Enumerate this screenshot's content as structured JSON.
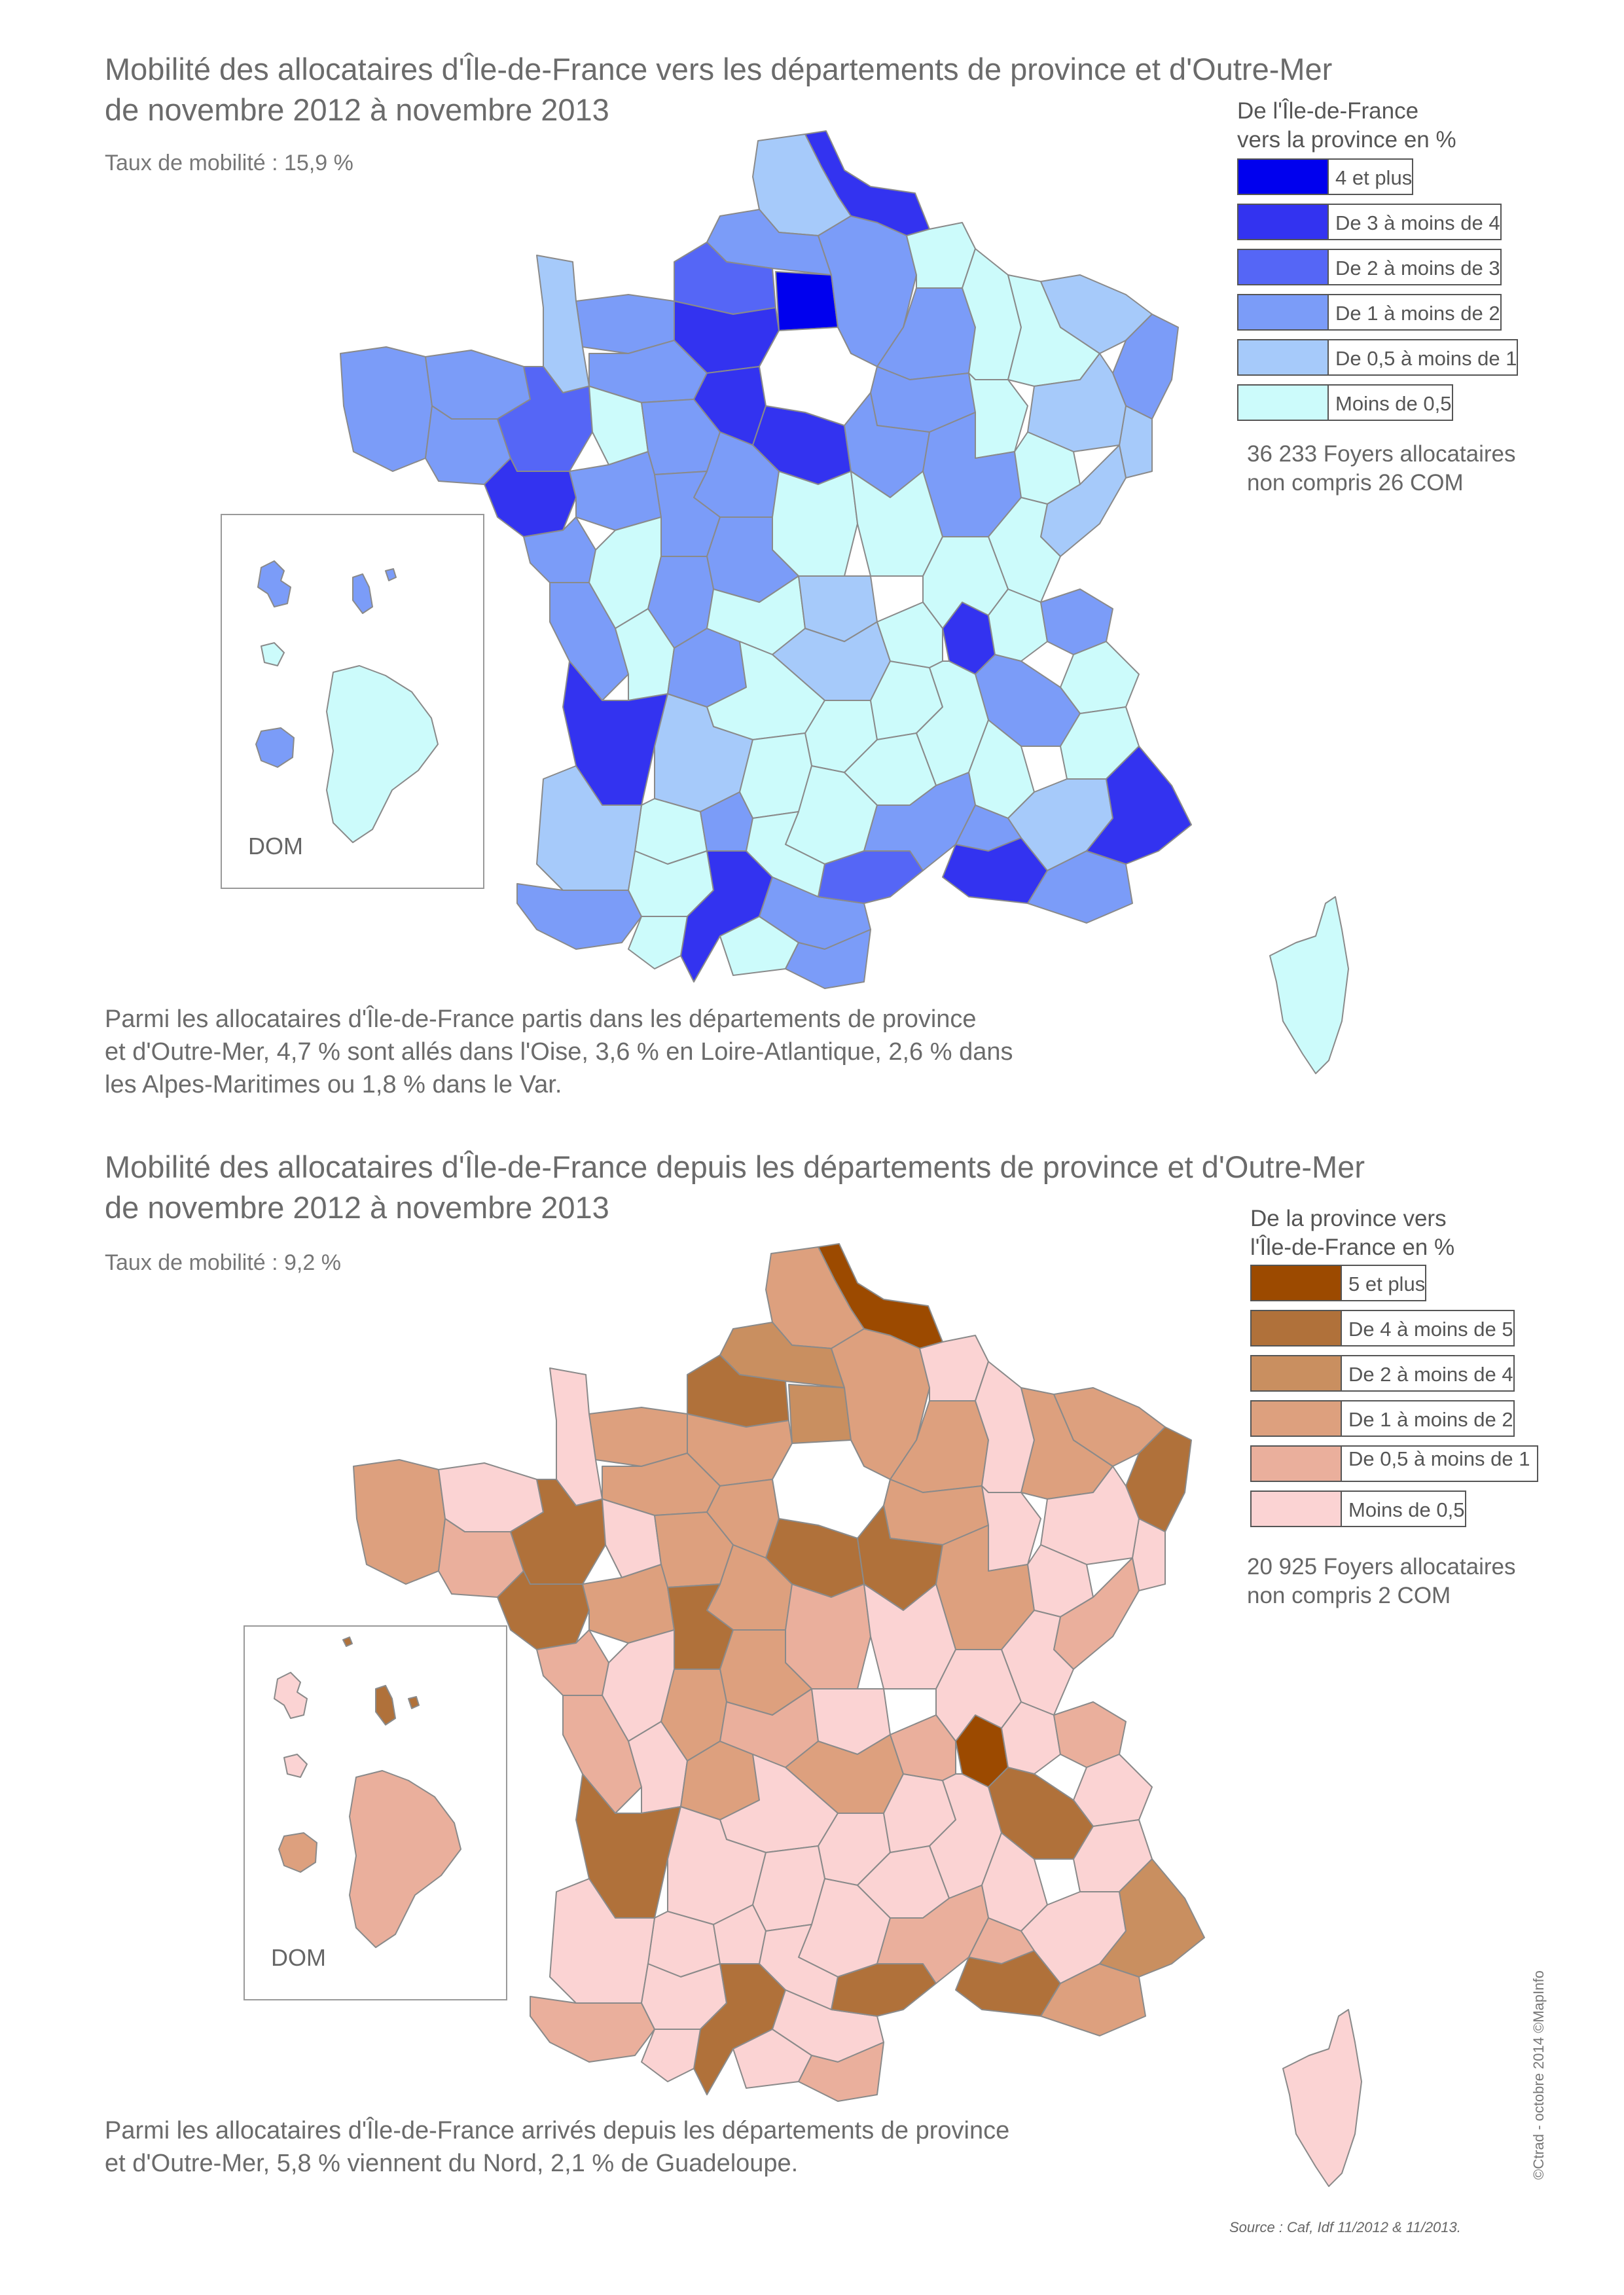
{
  "map1": {
    "title_line1": "Mobilité des allocataires d'Île-de-France vers les départements de province et d'Outre-Mer",
    "title_line2": "de novembre 2012 à novembre 2013",
    "rate": "Taux de mobilité : 15,9 %",
    "legend_title_line1": "De l'Île-de-France",
    "legend_title_line2": "vers la province en %",
    "legend": [
      {
        "label": "4 et plus",
        "color": "#0000ee"
      },
      {
        "label": "De 3 à moins de 4",
        "color": "#3333f0"
      },
      {
        "label": "De 2 à moins de 3",
        "color": "#5566f6"
      },
      {
        "label": "De 1 à moins de 2",
        "color": "#7b9cf8"
      },
      {
        "label": "De 0,5 à moins de 1",
        "color": "#a6cafa"
      },
      {
        "label": "Moins de 0,5",
        "color": "#ccfbfb"
      }
    ],
    "foyers_line1": "36 233 Foyers allocataires",
    "foyers_line2": "non compris 26 COM",
    "dom_label": "DOM",
    "note_line1": "Parmi les allocataires d'Île-de-France partis dans les départements de province",
    "note_line2": "et d'Outre-Mer, 4,7 % sont allés dans l'Oise, 3,6 % en Loire-Atlantique, 2,6 % dans",
    "note_line3": "les Alpes-Maritimes ou 1,8 % dans le Var."
  },
  "map2": {
    "title_line1": "Mobilité des allocataires d'Île-de-France depuis les départements de province et d'Outre-Mer",
    "title_line2": "de novembre 2012 à novembre 2013",
    "rate": "Taux de mobilité : 9,2 %",
    "legend_title_line1": "De la province vers",
    "legend_title_line2": "l'Île-de-France en %",
    "legend": [
      {
        "label": "5 et plus",
        "color": "#9c4a00"
      },
      {
        "label": "De 4 à moins de 5",
        "color": "#b0713a"
      },
      {
        "label": "De 2 à moins de 4",
        "color": "#c98f60"
      },
      {
        "label": "De 1 à moins de 2",
        "color": "#dda07e"
      },
      {
        "label": "De 0,5 à moins de 1",
        "color": "#eaaf9c"
      },
      {
        "label": "Moins de 0,5",
        "color": "#fbd3d3"
      }
    ],
    "foyers_line1": "20 925 Foyers allocataires",
    "foyers_line2": "non compris 2 COM",
    "dom_label": "DOM",
    "note_line1": "Parmi les allocataires d'Île-de-France arrivés depuis les départements de province",
    "note_line2": "et d'Outre-Mer, 5,8 % viennent du Nord, 2,1 % de Guadeloupe."
  },
  "source": "Source : Caf, Idf 11/2012 & 11/2013.",
  "credit": "©Ctrad - octobre 2014 ©MapInfo"
}
